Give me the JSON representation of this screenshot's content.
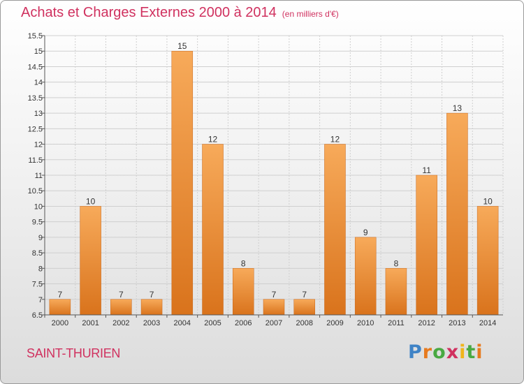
{
  "title": "Achats et Charges Externes 2000 à 2014",
  "subtitle": "(en milliers d'€)",
  "commune": "SAINT-THURIEN",
  "logo": {
    "text": "Proxiti",
    "colors": [
      "#3f83c6",
      "#e77a1e",
      "#49a942",
      "#d0315f",
      "#f0b51b"
    ]
  },
  "colors": {
    "title": "#d0315f",
    "bar_top": "#f7aa5a",
    "bar_bottom": "#d9731c",
    "grid": "#cfcfcf"
  },
  "chart_data": {
    "type": "bar",
    "title": "Achats et Charges Externes 2000 à 2014",
    "subtitle": "(en milliers d'€)",
    "categories": [
      "2000",
      "2001",
      "2002",
      "2003",
      "2004",
      "2005",
      "2006",
      "2007",
      "2008",
      "2009",
      "2010",
      "2011",
      "2012",
      "2013",
      "2014"
    ],
    "values": [
      7,
      10,
      7,
      7,
      15,
      12,
      8,
      7,
      7,
      12,
      9,
      8,
      11,
      13,
      10
    ],
    "ylim": [
      6.5,
      15.5
    ],
    "yticks": [
      "6.5",
      "7",
      "7.5",
      "8",
      "8.5",
      "9",
      "9.5",
      "10",
      "10.5",
      "11",
      "11.5",
      "12",
      "12.5",
      "13",
      "13.5",
      "14",
      "14.5",
      "15",
      "15.5"
    ],
    "grid": true,
    "xlabel": "",
    "ylabel": ""
  }
}
